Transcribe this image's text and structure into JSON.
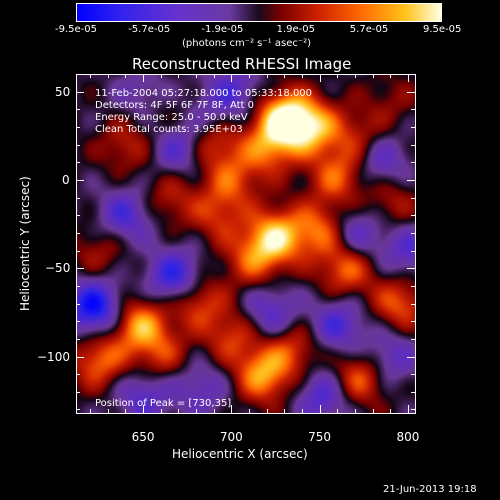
{
  "colorbar": {
    "tick_labels": [
      "-9.5e-05",
      "-5.7e-05",
      "-1.9e-05",
      "1.9e-05",
      "5.7e-05",
      "9.5e-05"
    ],
    "unit_label": "(photons cm⁻² s⁻¹ asec⁻²)",
    "range": [
      -9.5e-05,
      9.5e-05
    ]
  },
  "chart_data": {
    "type": "heatmap",
    "title": "Reconstructed RHESSI Image",
    "xlabel": "Heliocentric X (arcsec)",
    "ylabel": "Heliocentric Y (arcsec)",
    "xlim": [
      612,
      804
    ],
    "ylim": [
      -132,
      60
    ],
    "x_ticks": [
      650,
      700,
      750,
      800
    ],
    "y_ticks": [
      50,
      0,
      -50,
      -100
    ],
    "x_tick_labels": [
      "650",
      "700",
      "750",
      "800"
    ],
    "y_tick_labels": [
      "50",
      "0",
      "−50",
      "−100"
    ],
    "annotations": [
      "11-Feb-2004 05:27:18.000 to 05:33:18.000",
      "Detectors: 4F 5F 6F 7F 8F, Att 0",
      "Energy Range: 25.0 - 50.0 keV",
      "Clean    Total counts: 3.95E+03"
    ],
    "peak_label": "Position of Peak = [730,35]",
    "peak": [
      730,
      35
    ],
    "blobs": [
      {
        "x": 730,
        "y": 35,
        "v": 1.0
      },
      {
        "x": 745,
        "y": 30,
        "v": 0.75
      },
      {
        "x": 720,
        "y": 18,
        "v": 0.55
      },
      {
        "x": 690,
        "y": 22,
        "v": 0.5
      },
      {
        "x": 700,
        "y": 0,
        "v": 0.45
      },
      {
        "x": 760,
        "y": 2,
        "v": 0.55
      },
      {
        "x": 770,
        "y": 25,
        "v": 0.35
      },
      {
        "x": 725,
        "y": -32,
        "v": 0.85
      },
      {
        "x": 750,
        "y": -28,
        "v": 0.6
      },
      {
        "x": 712,
        "y": -45,
        "v": 0.5
      },
      {
        "x": 765,
        "y": -50,
        "v": 0.6
      },
      {
        "x": 692,
        "y": -20,
        "v": 0.4
      },
      {
        "x": 665,
        "y": -10,
        "v": 0.35
      },
      {
        "x": 640,
        "y": 20,
        "v": 0.35
      },
      {
        "x": 625,
        "y": -40,
        "v": 0.3
      },
      {
        "x": 648,
        "y": -82,
        "v": 0.75
      },
      {
        "x": 680,
        "y": -68,
        "v": 0.55
      },
      {
        "x": 700,
        "y": -88,
        "v": 0.45
      },
      {
        "x": 625,
        "y": -102,
        "v": 0.6
      },
      {
        "x": 660,
        "y": -100,
        "v": 0.4
      },
      {
        "x": 718,
        "y": -110,
        "v": 0.75
      },
      {
        "x": 735,
        "y": -95,
        "v": 0.45
      },
      {
        "x": 772,
        "y": -112,
        "v": 0.6
      },
      {
        "x": 795,
        "y": -70,
        "v": 0.55
      },
      {
        "x": 790,
        "y": -12,
        "v": 0.35
      },
      {
        "x": 660,
        "y": 40,
        "v": 0.2
      },
      {
        "x": 790,
        "y": 45,
        "v": 0.2
      },
      {
        "x": 622,
        "y": -72,
        "v": -0.9
      },
      {
        "x": 668,
        "y": -55,
        "v": -0.75
      },
      {
        "x": 722,
        "y": -75,
        "v": -0.5
      },
      {
        "x": 760,
        "y": -82,
        "v": -0.55
      },
      {
        "x": 790,
        "y": -100,
        "v": -0.45
      },
      {
        "x": 752,
        "y": -122,
        "v": -0.55
      },
      {
        "x": 650,
        "y": -122,
        "v": -0.5
      },
      {
        "x": 682,
        "y": -118,
        "v": -0.4
      },
      {
        "x": 640,
        "y": -20,
        "v": -0.55
      },
      {
        "x": 670,
        "y": 18,
        "v": -0.5
      },
      {
        "x": 650,
        "y": 48,
        "v": -0.35
      },
      {
        "x": 702,
        "y": 52,
        "v": -0.4
      },
      {
        "x": 785,
        "y": 10,
        "v": -0.45
      },
      {
        "x": 770,
        "y": -30,
        "v": -0.5
      },
      {
        "x": 800,
        "y": -40,
        "v": -0.45
      },
      {
        "x": 690,
        "y": 38,
        "v": -0.3
      }
    ]
  },
  "footer": {
    "timestamp": "21-Jun-2013 19:18"
  }
}
